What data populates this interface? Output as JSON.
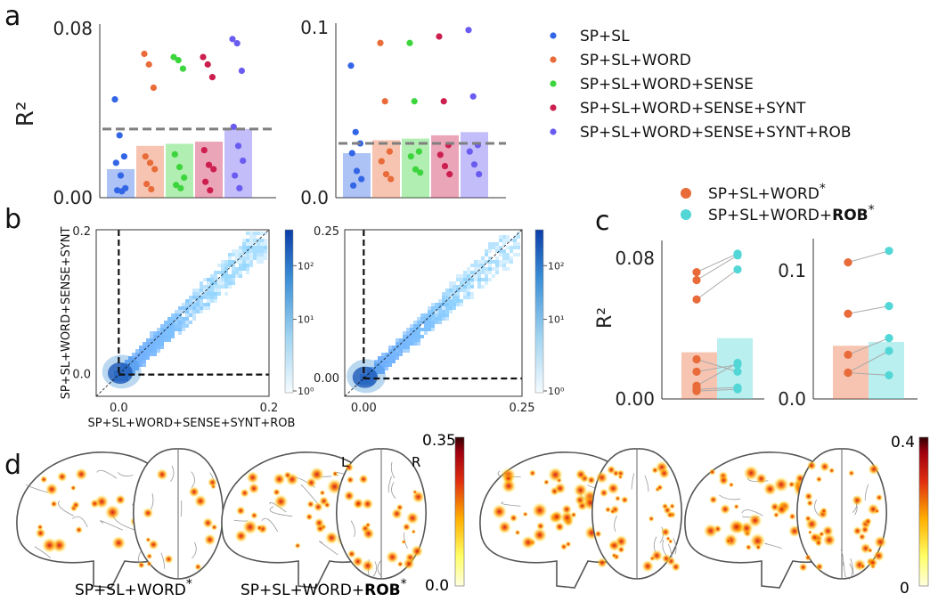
{
  "panel_letters": {
    "a": "a",
    "b": "b",
    "c": "c",
    "d": "d"
  },
  "colors": {
    "series": [
      "#3366e6",
      "#e86b39",
      "#3dd53d",
      "#cc1f4f",
      "#6a5cf0"
    ],
    "word": "#e86b39",
    "rob": "#52d6d6",
    "dashed": "#7f7f7f"
  },
  "legend_a": [
    "SP+SL",
    "SP+SL+WORD",
    "SP+SL+WORD+SENSE",
    "SP+SL+WORD+SENSE+SYNT",
    "SP+SL+WORD+SENSE+SYNT+ROB"
  ],
  "legend_c": {
    "word": "SP+SL+WORD",
    "rob_prefix": "SP+SL+WORD+",
    "rob_bold": "ROB",
    "star": "*"
  },
  "panel_d_labels": {
    "word": "SP+SL+WORD",
    "rob_prefix": "SP+SL+WORD+",
    "rob_bold": "ROB",
    "star": "*",
    "left": "L",
    "right": "R"
  },
  "chart_data": [
    {
      "id": "a-left",
      "type": "bar",
      "ylabel": "R²",
      "ylim": [
        0,
        0.08
      ],
      "yticks": [
        "0.00",
        "0.08"
      ],
      "categories": [
        "SP+SL",
        "SP+SL+WORD",
        "SP+SL+WORD+SENSE",
        "SP+SL+WORD+SENSE+SYNT",
        "SP+SL+WORD+SENSE+SYNT+ROB"
      ],
      "values": [
        0.0135,
        0.0245,
        0.0255,
        0.0265,
        0.0325
      ],
      "reference_line": 0.0325,
      "points": [
        [
          0.0465,
          0.0295,
          0.0195,
          0.0165,
          0.0105,
          0.0045,
          0.0035,
          0.003
        ],
        [
          0.068,
          0.063,
          0.052,
          0.0195,
          0.0165,
          0.0135,
          0.0065,
          0.004
        ],
        [
          0.0665,
          0.065,
          0.061,
          0.0205,
          0.0145,
          0.0095,
          0.006,
          0.0045
        ],
        [
          0.0665,
          0.063,
          0.057,
          0.0225,
          0.0155,
          0.0135,
          0.0075,
          0.0035
        ],
        [
          0.075,
          0.073,
          0.06,
          0.0335,
          0.0245,
          0.0175,
          0.0105,
          0.0045
        ]
      ]
    },
    {
      "id": "a-right",
      "type": "bar",
      "ylim": [
        0,
        0.105
      ],
      "yticks": [
        "0.0",
        "0.1"
      ],
      "categories": [
        "SP+SL",
        "SP+SL+WORD",
        "SP+SL+WORD+SENSE",
        "SP+SL+WORD+SENSE+SYNT",
        "SP+SL+WORD+SENSE+SYNT+ROB"
      ],
      "values": [
        0.0275,
        0.0355,
        0.0365,
        0.0385,
        0.0405
      ],
      "reference_line": 0.0335,
      "points": [
        [
          0.0815,
          0.0405,
          0.0335,
          0.0275,
          0.0165,
          0.0115,
          0.0075
        ],
        [
          0.0955,
          0.0595,
          0.0285,
          0.0225,
          0.0145,
          0.0115
        ],
        [
          0.0955,
          0.0595,
          0.0285,
          0.0255,
          0.0175,
          0.0155
        ],
        [
          0.0995,
          0.0595,
          0.0325,
          0.0265,
          0.0195,
          0.0145
        ],
        [
          0.1035,
          0.0625,
          0.0325,
          0.0285,
          0.0205,
          0.0145
        ]
      ]
    },
    {
      "id": "b-left",
      "type": "heatmap",
      "xlabel": "SP+SL+WORD+SENSE+SYNT+ROB",
      "ylabel": "SP+SL+WORD+SENSE+SYNT",
      "xlim": [
        -0.03,
        0.2
      ],
      "ylim": [
        -0.03,
        0.2
      ],
      "xticks": [
        "0.0",
        "0.2"
      ],
      "yticks": [
        "0.0",
        "0.2"
      ],
      "colorbar": {
        "scale": "log",
        "ticks": [
          "10⁰",
          "10¹",
          "10²"
        ]
      }
    },
    {
      "id": "b-right",
      "type": "heatmap",
      "xlim": [
        -0.03,
        0.25
      ],
      "ylim": [
        -0.03,
        0.25
      ],
      "xticks": [
        "0.00",
        "0.25"
      ],
      "yticks": [
        "0.00",
        "0.25"
      ],
      "colorbar": {
        "scale": "log",
        "ticks": [
          "10⁰",
          "10¹",
          "10²"
        ]
      }
    },
    {
      "id": "c-left",
      "type": "bar",
      "ylabel": "R²",
      "ylim": [
        0,
        0.09
      ],
      "yticks": [
        "0.00",
        "0.08"
      ],
      "categories": [
        "SP+SL+WORD*",
        "SP+SL+WORD+ROB*"
      ],
      "values": [
        0.0265,
        0.0345
      ],
      "pairs": [
        [
          0.072,
          0.0825
        ],
        [
          0.0675,
          0.0815
        ],
        [
          0.0565,
          0.0735
        ],
        [
          0.0225,
          0.0155
        ],
        [
          0.0155,
          0.0195
        ],
        [
          0.0075,
          0.0205
        ],
        [
          0.0055,
          0.0065
        ],
        [
          0.0045,
          0.0055
        ]
      ]
    },
    {
      "id": "c-right",
      "type": "bar",
      "ylim": [
        0,
        0.125
      ],
      "yticks": [
        "0.0",
        "0.1"
      ],
      "categories": [
        "SP+SL+WORD*",
        "SP+SL+WORD+ROB*"
      ],
      "values": [
        0.0415,
        0.0445
      ],
      "pairs": [
        [
          0.1065,
          0.1155
        ],
        [
          0.0665,
          0.0725
        ],
        [
          0.0345,
          0.0475
        ],
        [
          0.0205,
          0.0375
        ],
        [
          0.0205,
          0.0185
        ]
      ]
    },
    {
      "id": "d-left-colorbar",
      "type": "heatmap",
      "colorbar": {
        "scale": "linear",
        "range": [
          0.0,
          0.35
        ],
        "ticks": [
          "0.35",
          "0.0"
        ]
      }
    },
    {
      "id": "d-right-colorbar",
      "type": "heatmap",
      "colorbar": {
        "scale": "linear",
        "range": [
          0,
          0.4
        ],
        "ticks": [
          "0.4",
          "0"
        ]
      }
    }
  ]
}
